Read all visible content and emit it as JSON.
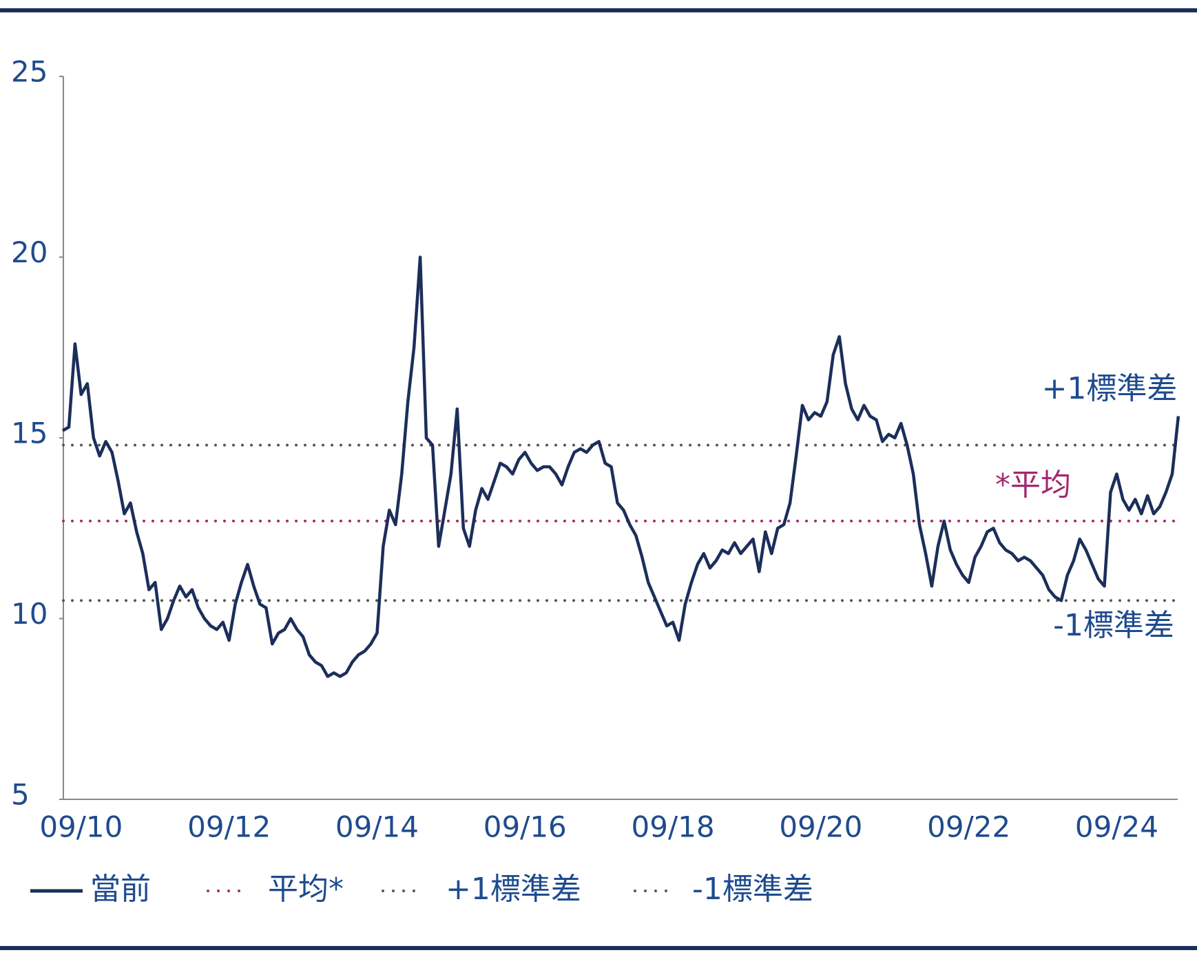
{
  "chart_data": {
    "type": "line",
    "categories": [
      null,
      null,
      null,
      "09/10",
      null,
      null,
      null,
      null,
      null,
      null,
      null,
      null,
      null,
      null,
      null,
      null,
      null,
      null,
      null,
      null,
      null,
      null,
      null,
      null,
      null,
      null,
      null,
      "09/12",
      null,
      null,
      null,
      null,
      null,
      null,
      null,
      null,
      null,
      null,
      null,
      null,
      null,
      null,
      null,
      null,
      null,
      null,
      null,
      null,
      null,
      null,
      null,
      "09/14",
      null,
      null,
      null,
      null,
      null,
      null,
      null,
      null,
      null,
      null,
      null,
      null,
      null,
      null,
      null,
      null,
      null,
      null,
      null,
      null,
      null,
      null,
      null,
      "09/16",
      null,
      null,
      null,
      null,
      null,
      null,
      null,
      null,
      null,
      null,
      null,
      null,
      null,
      null,
      null,
      null,
      null,
      null,
      null,
      null,
      null,
      null,
      null,
      "09/18",
      null,
      null,
      null,
      null,
      null,
      null,
      null,
      null,
      null,
      null,
      null,
      null,
      null,
      null,
      null,
      null,
      null,
      null,
      null,
      null,
      null,
      null,
      null,
      "09/20",
      null,
      null,
      null,
      null,
      null,
      null,
      null,
      null,
      null,
      null,
      null,
      null,
      null,
      null,
      null,
      null,
      null,
      null,
      null,
      null,
      null,
      null,
      null,
      "09/22",
      null,
      null,
      null,
      null,
      null,
      null,
      null,
      null,
      null,
      null,
      null,
      null,
      null,
      null,
      null,
      null,
      null,
      null,
      null,
      null,
      null,
      null,
      null,
      "09/24",
      null,
      null,
      null,
      null,
      null,
      null,
      null,
      null,
      null,
      null
    ],
    "series": [
      {
        "name": "當前",
        "color": "#1c2e5a",
        "values": [
          15.2,
          15.3,
          17.6,
          16.2,
          16.5,
          15.0,
          14.5,
          14.9,
          14.6,
          13.8,
          12.9,
          13.2,
          12.4,
          11.8,
          10.8,
          11.0,
          9.7,
          10.0,
          10.5,
          10.9,
          10.6,
          10.8,
          10.3,
          10.0,
          9.8,
          9.7,
          9.9,
          9.4,
          10.4,
          11.0,
          11.5,
          10.9,
          10.4,
          10.3,
          9.3,
          9.6,
          9.7,
          10.0,
          9.7,
          9.5,
          9.0,
          8.8,
          8.7,
          8.4,
          8.5,
          8.4,
          8.5,
          8.8,
          9.0,
          9.1,
          9.3,
          9.6,
          12.0,
          13.0,
          12.6,
          14.0,
          16.0,
          17.5,
          20.0,
          15.0,
          14.8,
          12.0,
          13.0,
          14.0,
          15.8,
          12.5,
          12.0,
          13.0,
          13.6,
          13.3,
          13.8,
          14.3,
          14.2,
          14.0,
          14.4,
          14.6,
          14.3,
          14.1,
          14.2,
          14.2,
          14.0,
          13.7,
          14.2,
          14.6,
          14.7,
          14.6,
          14.8,
          14.9,
          14.3,
          14.2,
          13.2,
          13.0,
          12.6,
          12.3,
          11.7,
          11.0,
          10.6,
          10.2,
          9.8,
          9.9,
          9.4,
          10.4,
          11.0,
          11.5,
          11.8,
          11.4,
          11.6,
          11.9,
          11.8,
          12.1,
          11.8,
          12.0,
          12.2,
          11.3,
          12.4,
          11.8,
          12.5,
          12.6,
          13.2,
          14.5,
          15.9,
          15.5,
          15.7,
          15.6,
          16.0,
          17.3,
          17.8,
          16.5,
          15.8,
          15.5,
          15.9,
          15.6,
          15.5,
          14.9,
          15.1,
          15.0,
          15.4,
          14.8,
          14.0,
          12.6,
          11.8,
          10.9,
          12.0,
          12.7,
          11.9,
          11.5,
          11.2,
          11.0,
          11.7,
          12.0,
          12.4,
          12.5,
          12.1,
          11.9,
          11.8,
          11.6,
          11.7,
          11.6,
          11.4,
          11.2,
          10.8,
          10.6,
          10.5,
          11.2,
          11.6,
          12.2,
          11.9,
          11.5,
          11.1,
          10.9,
          13.5,
          14.0,
          13.3,
          13.0,
          13.3,
          12.9,
          13.4,
          12.9,
          13.1,
          13.5,
          14.0,
          15.6
        ]
      }
    ],
    "reference_lines": [
      {
        "name": "平均*",
        "label": "*平均",
        "value": 12.7,
        "color": "#a3296e"
      },
      {
        "name": "+1標準差",
        "label": "+1標準差",
        "value": 14.8,
        "color": "#555555"
      },
      {
        "name": "-1標準差",
        "label": "-1標準差",
        "value": 10.5,
        "color": "#555555"
      }
    ],
    "ylim": [
      5,
      25
    ],
    "yticks": [
      5,
      10,
      15,
      20,
      25
    ],
    "grid": false
  }
}
